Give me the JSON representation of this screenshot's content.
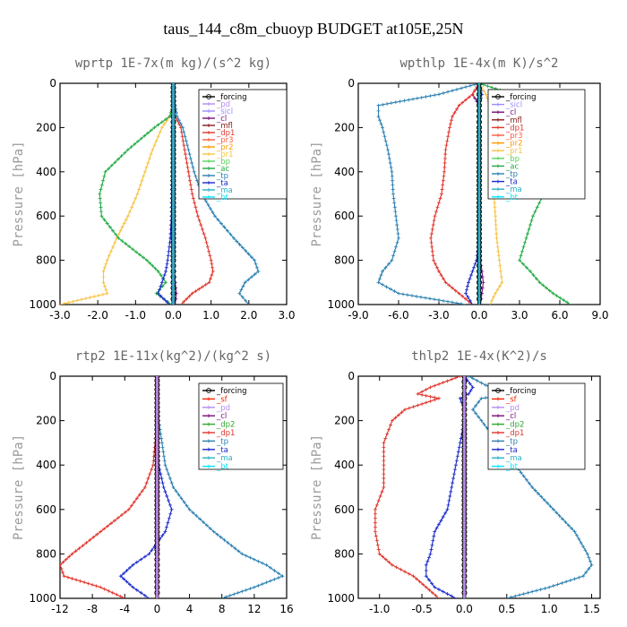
{
  "title": "taus_144_c8m_cbuoyp  BUDGET at105E,25N",
  "colors": {
    "forcing": "#000000",
    "pd": "#b58cf0",
    "sicl": "#9a8cff",
    "cl": "#7a0f7a",
    "mfl": "#8b1a1a",
    "dp1": "#e0342b",
    "pr3": "#ff5a3c",
    "pr2": "#ff9a00",
    "pr1": "#f6c343",
    "bp": "#55d35a",
    "ac": "#22aa44",
    "tp": "#2a7fb0",
    "ta": "#1a2acc",
    "ma": "#2ab0c8",
    "bt": "#00e5ff",
    "sf": "#ff2200",
    "dp2": "#2ea82e"
  },
  "chart_data": [
    {
      "type": "line",
      "title": "wprtp  1E-7x(m kg)/(s^2 kg)",
      "ylabel": "Pressure [hPa]",
      "xlim": [
        -3.0,
        3.0
      ],
      "ylim": [
        1000,
        0
      ],
      "xticks": [
        -3.0,
        -2.0,
        -1.0,
        0.0,
        1.0,
        2.0,
        3.0
      ],
      "xticklabels": [
        "-3.0",
        "-2.0",
        "-1.0",
        "0.0",
        "1.0",
        "2.0",
        "3.0"
      ],
      "yticks": [
        0,
        200,
        400,
        600,
        800,
        1000
      ],
      "yticklabels": [
        "0",
        "200",
        "400",
        "600",
        "800",
        "1000"
      ],
      "legend": {
        "position": "right",
        "entries": [
          "_forcing",
          "_pd",
          "_sicl",
          "_cl",
          "_mfl",
          "_dp1",
          "_pr3",
          "_pr2",
          "_pr1",
          "_bp",
          "_ac",
          "_tp",
          "_ta",
          "_ma",
          "_bt"
        ],
        "keys": [
          "forcing",
          "pd",
          "sicl",
          "cl",
          "mfl",
          "dp1",
          "pr3",
          "pr2",
          "pr1",
          "bp",
          "ac",
          "tp",
          "ta",
          "ma",
          "bt"
        ]
      },
      "y": [
        0,
        100,
        150,
        200,
        300,
        400,
        500,
        600,
        700,
        800,
        850,
        900,
        950,
        1000
      ],
      "series": [
        {
          "name": "_forcing",
          "key": "forcing",
          "values": [
            0,
            0,
            0,
            0,
            0,
            0,
            0,
            0,
            0,
            0,
            0,
            0,
            0,
            0
          ]
        },
        {
          "name": "_pd",
          "key": "pd",
          "values": [
            0,
            0,
            0,
            0,
            0,
            0,
            0,
            0,
            0,
            0,
            0,
            0,
            0,
            0
          ]
        },
        {
          "name": "_cl",
          "key": "cl",
          "values": [
            0,
            0,
            0,
            0.01,
            0.01,
            0.02,
            0.02,
            0.02,
            0.02,
            0.02,
            0.03,
            0.05,
            0.08,
            0.05
          ]
        },
        {
          "name": "_dp1",
          "key": "dp1",
          "values": [
            0,
            0,
            0.05,
            0.2,
            0.3,
            0.4,
            0.5,
            0.65,
            0.85,
            1.0,
            1.05,
            0.95,
            0.5,
            0.2
          ]
        },
        {
          "name": "_pr1",
          "key": "pr1",
          "values": [
            0,
            0,
            -0.1,
            -0.3,
            -0.55,
            -0.75,
            -0.95,
            -1.2,
            -1.5,
            -1.75,
            -1.85,
            -1.85,
            -1.75,
            -3.0
          ]
        },
        {
          "name": "_ac",
          "key": "ac",
          "values": [
            0,
            0,
            -0.1,
            -0.5,
            -1.2,
            -1.8,
            -1.95,
            -1.9,
            -1.45,
            -0.7,
            -0.4,
            -0.2,
            -0.45,
            -0.05
          ]
        },
        {
          "name": "_tp",
          "key": "tp",
          "values": [
            0,
            0.05,
            0.1,
            0.25,
            0.4,
            0.55,
            0.75,
            1.1,
            1.6,
            2.15,
            2.25,
            1.9,
            1.75,
            2.0
          ]
        },
        {
          "name": "_ta",
          "key": "ta",
          "values": [
            0,
            0,
            0,
            -0.02,
            -0.02,
            -0.03,
            -0.04,
            -0.05,
            -0.08,
            -0.15,
            -0.2,
            -0.3,
            -0.4,
            -0.1
          ]
        },
        {
          "name": "_ma",
          "key": "ma",
          "values": [
            0,
            0,
            0,
            0,
            0,
            0,
            0,
            0,
            0,
            0,
            0,
            0,
            0,
            0
          ]
        }
      ]
    },
    {
      "type": "line",
      "title": "wpthlp  1E-4x(m K)/s^2",
      "ylabel": "Pressure [hPa]",
      "xlim": [
        -9.0,
        9.0
      ],
      "ylim": [
        1000,
        0
      ],
      "xticks": [
        -9.0,
        -6.0,
        -3.0,
        0.0,
        3.0,
        6.0,
        9.0
      ],
      "xticklabels": [
        "-9.0",
        "-6.0",
        "-3.0",
        "0.0",
        "3.0",
        "6.0",
        "9.0"
      ],
      "yticks": [
        0,
        200,
        400,
        600,
        800,
        1000
      ],
      "yticklabels": [
        "0",
        "200",
        "400",
        "600",
        "800",
        "1000"
      ],
      "legend": {
        "position": "right",
        "entries": [
          "_forcing",
          "_sicl",
          "_cl",
          "_mfl",
          "_dp1",
          "_pr3",
          "_pr2",
          "_pr1",
          "_bp",
          "_ac",
          "_tp",
          "_ta",
          "_ma",
          "_bt"
        ],
        "keys": [
          "forcing",
          "sicl",
          "cl",
          "mfl",
          "dp1",
          "pr3",
          "pr2",
          "pr1",
          "bp",
          "ac",
          "tp",
          "ta",
          "ma",
          "bt"
        ]
      },
      "y": [
        0,
        50,
        100,
        150,
        200,
        300,
        400,
        500,
        600,
        700,
        800,
        850,
        900,
        950,
        1000
      ],
      "series": [
        {
          "name": "_forcing",
          "key": "forcing",
          "values": [
            0,
            0,
            0,
            0,
            0,
            0,
            0,
            0,
            0,
            0,
            0,
            0,
            0,
            0,
            0
          ]
        },
        {
          "name": "_cl",
          "key": "cl",
          "values": [
            0,
            -0.5,
            0,
            0,
            0,
            0,
            0,
            0,
            0,
            0,
            0.1,
            0.2,
            0.3,
            0.2,
            0.1
          ]
        },
        {
          "name": "_dp1",
          "key": "dp1",
          "values": [
            0,
            -0.5,
            -1.5,
            -2.0,
            -2.2,
            -2.5,
            -2.6,
            -2.8,
            -3.3,
            -3.6,
            -3.4,
            -3.0,
            -2.5,
            -1.5,
            -0.5
          ]
        },
        {
          "name": "_pr1",
          "key": "pr1",
          "values": [
            0,
            0.5,
            0.8,
            0.9,
            0.9,
            1.0,
            1.0,
            1.1,
            1.2,
            1.3,
            1.5,
            1.6,
            1.7,
            1.2,
            0.8
          ]
        },
        {
          "name": "_ac",
          "key": "ac",
          "values": [
            0,
            2.5,
            6.5,
            6.0,
            5.5,
            5.0,
            5.2,
            4.8,
            4.0,
            3.5,
            3.0,
            3.8,
            4.5,
            5.5,
            6.8
          ]
        },
        {
          "name": "_tp",
          "key": "tp",
          "values": [
            0,
            -3,
            -7.5,
            -7.5,
            -7.2,
            -6.8,
            -6.5,
            -6.4,
            -6.2,
            -6.0,
            -6.5,
            -7.2,
            -7.5,
            -6.0,
            -1.0
          ]
        },
        {
          "name": "_ta",
          "key": "ta",
          "values": [
            0,
            0.2,
            0,
            0,
            0,
            0,
            0,
            0,
            0,
            0,
            -0.2,
            -0.5,
            -0.8,
            -1.0,
            -0.5
          ]
        },
        {
          "name": "_ma",
          "key": "ma",
          "values": [
            0,
            0,
            0,
            0,
            0,
            0,
            0,
            0,
            0,
            0,
            0,
            0,
            0,
            0,
            0
          ]
        }
      ]
    },
    {
      "type": "line",
      "title": "rtp2  1E-11x(kg^2)/(kg^2 s)",
      "ylabel": "Pressure [hPa]",
      "xlim": [
        -12,
        16
      ],
      "ylim": [
        1000,
        0
      ],
      "xticks": [
        -12,
        -8,
        -4,
        0,
        4,
        8,
        12,
        16
      ],
      "xticklabels": [
        "-12",
        "-8",
        "-4",
        "0",
        "4",
        "8",
        "12",
        "16"
      ],
      "yticks": [
        0,
        200,
        400,
        600,
        800,
        1000
      ],
      "yticklabels": [
        "0",
        "200",
        "400",
        "600",
        "800",
        "1000"
      ],
      "legend": {
        "position": "right",
        "entries": [
          "_forcing",
          "_sf",
          "_pd",
          "_cl",
          "_dp2",
          "_dp1",
          "_tp",
          "_ta",
          "_ma",
          "_bt"
        ],
        "keys": [
          "forcing",
          "sf",
          "pd",
          "cl",
          "dp2",
          "dp1",
          "tp",
          "ta",
          "ma",
          "bt"
        ]
      },
      "y": [
        0,
        200,
        400,
        500,
        600,
        700,
        800,
        850,
        900,
        950,
        1000
      ],
      "series": [
        {
          "name": "_dp1",
          "key": "dp1",
          "values": [
            0,
            0,
            -0.5,
            -1.5,
            -3.5,
            -7.0,
            -10.5,
            -12.0,
            -11.5,
            -7.0,
            -4.0
          ]
        },
        {
          "name": "_tp",
          "key": "tp",
          "values": [
            0,
            0.2,
            1.0,
            2.0,
            4.0,
            7.0,
            10.5,
            13.5,
            15.5,
            12.0,
            8.0
          ]
        },
        {
          "name": "_ta",
          "key": "ta",
          "values": [
            0,
            0,
            0.2,
            0.8,
            1.8,
            1.0,
            -1.0,
            -3.0,
            -4.5,
            -3.0,
            -1.0
          ]
        },
        {
          "name": "_forcing",
          "key": "forcing",
          "values": [
            0,
            0,
            0,
            0,
            0,
            0,
            0,
            0,
            0,
            0,
            0
          ]
        },
        {
          "name": "_sf",
          "key": "sf",
          "values": [
            0,
            0,
            0,
            0,
            0,
            0,
            0,
            0,
            0,
            0,
            0
          ]
        },
        {
          "name": "_pd",
          "key": "pd",
          "values": [
            0,
            0,
            0,
            0,
            0,
            0,
            0,
            0,
            0,
            0,
            0
          ]
        }
      ]
    },
    {
      "type": "line",
      "title": "thlp2  1E-4x(K^2)/s",
      "ylabel": "Pressure [hPa]",
      "xlim": [
        -1.25,
        1.6
      ],
      "ylim": [
        1000,
        0
      ],
      "xticks": [
        -1.0,
        -0.5,
        0.0,
        0.5,
        1.0,
        1.5
      ],
      "xticklabels": [
        "-1.0",
        "-0.5",
        "0.0",
        "0.5",
        "1.0",
        "1.5"
      ],
      "yticks": [
        0,
        200,
        400,
        600,
        800,
        1000
      ],
      "yticklabels": [
        "0",
        "200",
        "400",
        "600",
        "800",
        "1000"
      ],
      "legend": {
        "position": "right",
        "entries": [
          "_forcing",
          "_sf",
          "_pd",
          "_cl",
          "_dp2",
          "_dp1",
          "_tp",
          "_ta",
          "_ma",
          "_bt"
        ],
        "keys": [
          "forcing",
          "sf",
          "pd",
          "cl",
          "dp2",
          "dp1",
          "tp",
          "ta",
          "ma",
          "bt"
        ]
      },
      "y": [
        0,
        50,
        80,
        100,
        150,
        200,
        300,
        400,
        500,
        600,
        700,
        800,
        850,
        900,
        950,
        1000
      ],
      "series": [
        {
          "name": "_dp1",
          "key": "dp1",
          "values": [
            -0.05,
            -0.4,
            -0.55,
            -0.3,
            -0.7,
            -0.85,
            -0.95,
            -0.95,
            -0.95,
            -1.05,
            -1.05,
            -1.0,
            -0.85,
            -0.6,
            -0.45,
            -0.3
          ]
        },
        {
          "name": "_tp",
          "key": "tp",
          "values": [
            0.05,
            0.3,
            0.6,
            0.2,
            0.1,
            0.2,
            0.4,
            0.6,
            0.8,
            1.05,
            1.3,
            1.45,
            1.5,
            1.4,
            1.0,
            0.5
          ]
        },
        {
          "name": "_ta",
          "key": "ta",
          "values": [
            0,
            0.1,
            0.05,
            -0.05,
            0,
            0,
            -0.05,
            -0.1,
            -0.15,
            -0.2,
            -0.35,
            -0.4,
            -0.45,
            -0.45,
            -0.35,
            -0.1
          ]
        },
        {
          "name": "_forcing",
          "key": "forcing",
          "values": [
            0,
            0,
            0,
            0,
            0,
            0,
            0,
            0,
            0,
            0,
            0,
            0,
            0,
            0,
            0,
            0
          ]
        },
        {
          "name": "_sf",
          "key": "sf",
          "values": [
            0,
            0,
            0,
            0,
            0,
            0,
            0,
            0,
            0,
            0,
            0,
            0,
            0,
            0,
            0,
            0
          ]
        },
        {
          "name": "_pd",
          "key": "pd",
          "values": [
            0,
            0,
            0,
            0,
            0,
            0,
            0,
            0,
            0,
            0,
            0,
            0,
            0,
            0,
            0,
            0
          ]
        }
      ]
    }
  ]
}
